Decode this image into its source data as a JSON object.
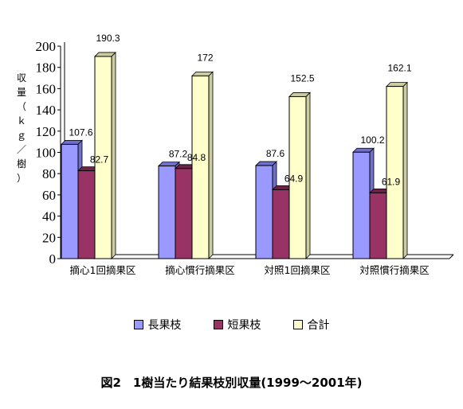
{
  "chart_data": {
    "type": "bar",
    "ylabel": "収量（ｋｇ／樹）",
    "ylim": [
      0,
      200
    ],
    "yticks": [
      "0",
      "20",
      "40",
      "60",
      "80",
      "100",
      "120",
      "140",
      "160",
      "180",
      "200"
    ],
    "grid": false,
    "legend_position": "bottom",
    "categories": [
      "摘心1回摘果区",
      "摘心慣行摘果区",
      "対照1回摘果区",
      "対照慣行摘果区"
    ],
    "series": [
      {
        "name": "長果枝",
        "color": "#9999ff",
        "values": [
          107.6,
          87.2,
          87.6,
          100.2
        ],
        "labels": [
          "107.6",
          "87.2",
          "87.6",
          "100.2"
        ]
      },
      {
        "name": "短果枝",
        "color": "#993366",
        "values": [
          82.7,
          84.8,
          64.9,
          61.9
        ],
        "labels": [
          "82.7",
          "84.8",
          "64.9",
          "61.9"
        ]
      },
      {
        "name": "合計",
        "color": "#ffffcc",
        "values": [
          190.3,
          172,
          152.5,
          162.1
        ],
        "labels": [
          "190.3",
          "172",
          "152.5",
          "162.1"
        ]
      }
    ],
    "title": "図2　1樹当たり結果枝別収量(1999～2001年)"
  }
}
